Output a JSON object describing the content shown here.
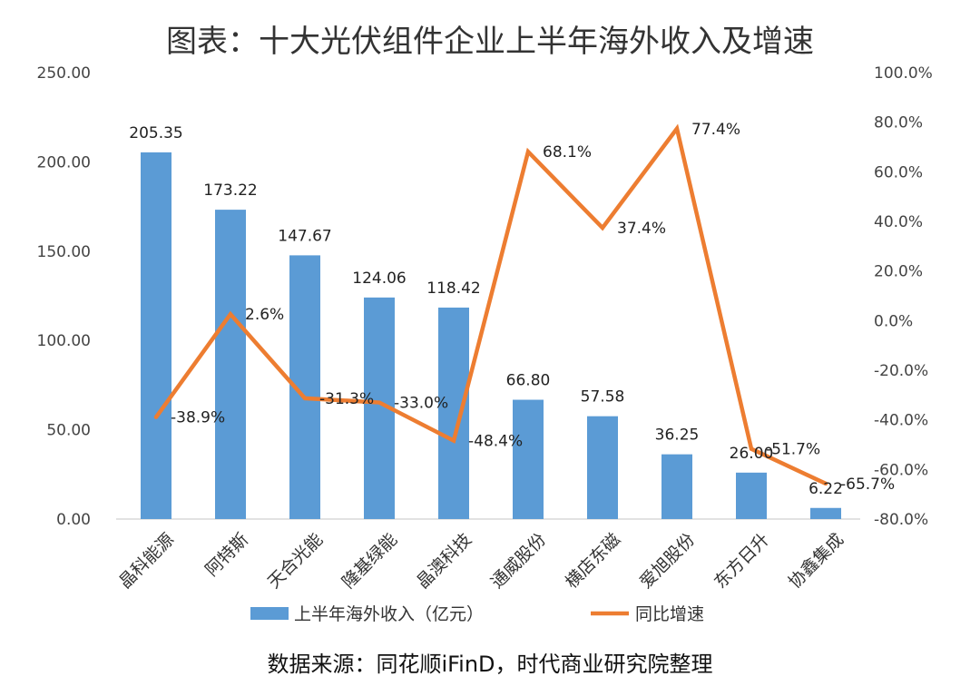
{
  "title": "图表：十大光伏组件企业上半年海外收入及增速",
  "source": "数据来源：同花顺iFinD，时代商业研究院整理",
  "colors": {
    "bar": "#5B9BD5",
    "line": "#ED7D31",
    "axis": "#D9D9D9"
  },
  "chart_data": {
    "type": "bar",
    "categories": [
      "晶科能源",
      "阿特斯",
      "天合光能",
      "隆基绿能",
      "晶澳科技",
      "通威股份",
      "横店东磁",
      "爱旭股份",
      "东方日升",
      "协鑫集成"
    ],
    "series": [
      {
        "name": "上半年海外收入（亿元）",
        "type": "bar",
        "axis": "left",
        "values": [
          205.35,
          173.22,
          147.67,
          124.06,
          118.42,
          66.8,
          57.58,
          36.25,
          26.0,
          6.22
        ],
        "labels": [
          "205.35",
          "173.22",
          "147.67",
          "124.06",
          "118.42",
          "66.80",
          "57.58",
          "36.25",
          "26.00",
          "6.22"
        ]
      },
      {
        "name": "同比增速",
        "type": "line",
        "axis": "right",
        "values": [
          -38.9,
          2.6,
          -31.3,
          -33.0,
          -48.4,
          68.1,
          37.4,
          77.4,
          -51.7,
          -65.7
        ],
        "labels": [
          "-38.9%",
          "2.6%",
          "-31.3%",
          "-33.0%",
          "-48.4%",
          "68.1%",
          "37.4%",
          "77.4%",
          "-51.7%",
          "-65.7%"
        ]
      }
    ],
    "left_axis": {
      "ylim": [
        0,
        250
      ],
      "ticks": [
        "0.00",
        "50.00",
        "100.00",
        "150.00",
        "200.00",
        "250.00"
      ]
    },
    "right_axis": {
      "ylim": [
        -80,
        100
      ],
      "ticks": [
        "-80.0%",
        "-60.0%",
        "-40.0%",
        "-20.0%",
        "0.0%",
        "20.0%",
        "40.0%",
        "60.0%",
        "80.0%",
        "100.0%"
      ]
    },
    "grid": false,
    "legend": "bottom"
  }
}
